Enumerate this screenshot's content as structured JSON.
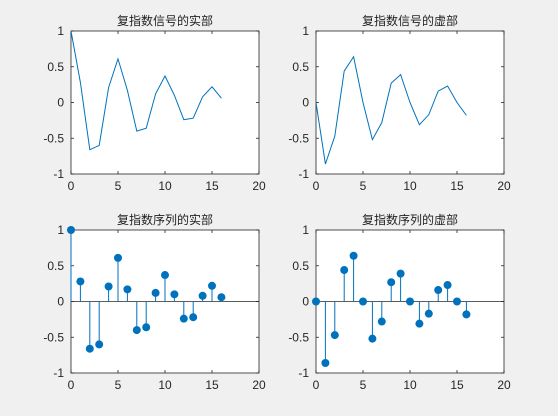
{
  "chart_data": [
    {
      "type": "line",
      "title": "复指数信号的实部",
      "xlim": [
        0,
        20
      ],
      "ylim": [
        -1,
        1
      ],
      "xticks": [
        0,
        5,
        10,
        15,
        20
      ],
      "yticks": [
        -1,
        -0.5,
        0,
        0.5,
        1
      ],
      "xtick_labels": [
        "0",
        "5",
        "10",
        "15",
        "20"
      ],
      "ytick_labels": [
        "-1",
        "-0.5",
        "0",
        "0.5",
        "1"
      ],
      "color": "#0072BD",
      "x": [
        0,
        1,
        2,
        3,
        4,
        5,
        6,
        7,
        8,
        9,
        10,
        11,
        12,
        13,
        14,
        15,
        16
      ],
      "y": [
        1,
        0.28,
        -0.66,
        -0.6,
        0.21,
        0.61,
        0.17,
        -0.4,
        -0.36,
        0.12,
        0.37,
        0.1,
        -0.24,
        -0.22,
        0.08,
        0.22,
        0.06
      ]
    },
    {
      "type": "line",
      "title": "复指数信号的虚部",
      "xlim": [
        0,
        20
      ],
      "ylim": [
        -1,
        1
      ],
      "xticks": [
        0,
        5,
        10,
        15,
        20
      ],
      "yticks": [
        -1,
        -0.5,
        0,
        0.5,
        1
      ],
      "xtick_labels": [
        "0",
        "5",
        "10",
        "15",
        "20"
      ],
      "ytick_labels": [
        "-1",
        "-0.5",
        "0",
        "0.5",
        "1"
      ],
      "color": "#0072BD",
      "x": [
        0,
        1,
        2,
        3,
        4,
        5,
        6,
        7,
        8,
        9,
        10,
        11,
        12,
        13,
        14,
        15,
        16
      ],
      "y": [
        0,
        -0.86,
        -0.47,
        0.44,
        0.64,
        0.0,
        -0.52,
        -0.28,
        0.27,
        0.39,
        0.0,
        -0.31,
        -0.17,
        0.16,
        0.23,
        0.0,
        -0.18
      ]
    },
    {
      "type": "stem",
      "title": "复指数序列的实部",
      "xlim": [
        0,
        20
      ],
      "ylim": [
        -1,
        1
      ],
      "xticks": [
        0,
        5,
        10,
        15,
        20
      ],
      "yticks": [
        -1,
        -0.5,
        0,
        0.5,
        1
      ],
      "xtick_labels": [
        "0",
        "5",
        "10",
        "15",
        "20"
      ],
      "ytick_labels": [
        "-1",
        "-0.5",
        "0",
        "0.5",
        "1"
      ],
      "color": "#0072BD",
      "x": [
        0,
        1,
        2,
        3,
        4,
        5,
        6,
        7,
        8,
        9,
        10,
        11,
        12,
        13,
        14,
        15,
        16
      ],
      "y": [
        1,
        0.28,
        -0.66,
        -0.6,
        0.21,
        0.61,
        0.17,
        -0.4,
        -0.36,
        0.12,
        0.37,
        0.1,
        -0.24,
        -0.22,
        0.08,
        0.22,
        0.06
      ]
    },
    {
      "type": "stem",
      "title": "复指数序列的虚部",
      "xlim": [
        0,
        20
      ],
      "ylim": [
        -1,
        1
      ],
      "xticks": [
        0,
        5,
        10,
        15,
        20
      ],
      "yticks": [
        -1,
        -0.5,
        0,
        0.5,
        1
      ],
      "xtick_labels": [
        "0",
        "5",
        "10",
        "15",
        "20"
      ],
      "ytick_labels": [
        "-1",
        "-0.5",
        "0",
        "0.5",
        "1"
      ],
      "color": "#0072BD",
      "x": [
        0,
        1,
        2,
        3,
        4,
        5,
        6,
        7,
        8,
        9,
        10,
        11,
        12,
        13,
        14,
        15,
        16
      ],
      "y": [
        0,
        -0.86,
        -0.47,
        0.44,
        0.64,
        0.0,
        -0.52,
        -0.28,
        0.27,
        0.39,
        0.0,
        -0.31,
        -0.17,
        0.16,
        0.23,
        0.0,
        -0.18
      ]
    }
  ]
}
